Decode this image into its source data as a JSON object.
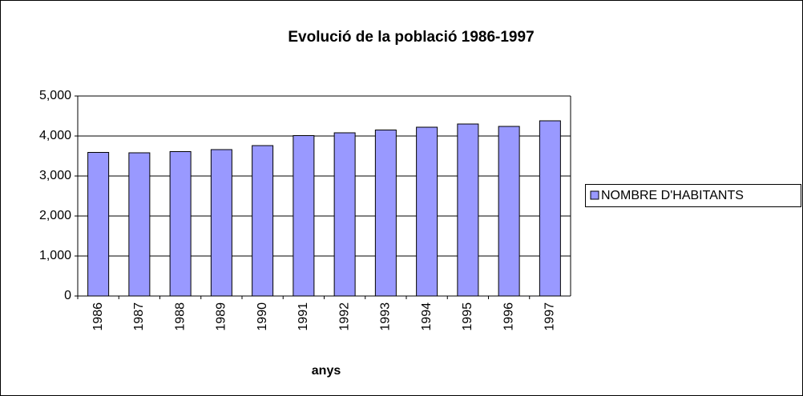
{
  "chart_data": {
    "type": "bar",
    "title": "Evolució de la població 1986-1997",
    "x_label": "anys",
    "categories": [
      "1986",
      "1987",
      "1988",
      "1989",
      "1990",
      "1991",
      "1992",
      "1993",
      "1994",
      "1995",
      "1996",
      "1997"
    ],
    "series": [
      {
        "name": "NOMBRE D'HABITANTS",
        "color": "#9999ff",
        "values": [
          3590,
          3580,
          3610,
          3660,
          3760,
          4010,
          4080,
          4150,
          4220,
          4300,
          4240,
          4380
        ]
      }
    ],
    "ylim": [
      0,
      5000
    ],
    "yticks": [
      0,
      {
        "value": 1000,
        "label": "1,000"
      },
      {
        "value": 2000,
        "label": "2,000"
      },
      {
        "value": 3000,
        "label": "3,000"
      },
      {
        "value": 4000,
        "label": "4,000"
      },
      {
        "value": 5000,
        "label": "5,000"
      }
    ],
    "grid": true,
    "legend": "right"
  }
}
